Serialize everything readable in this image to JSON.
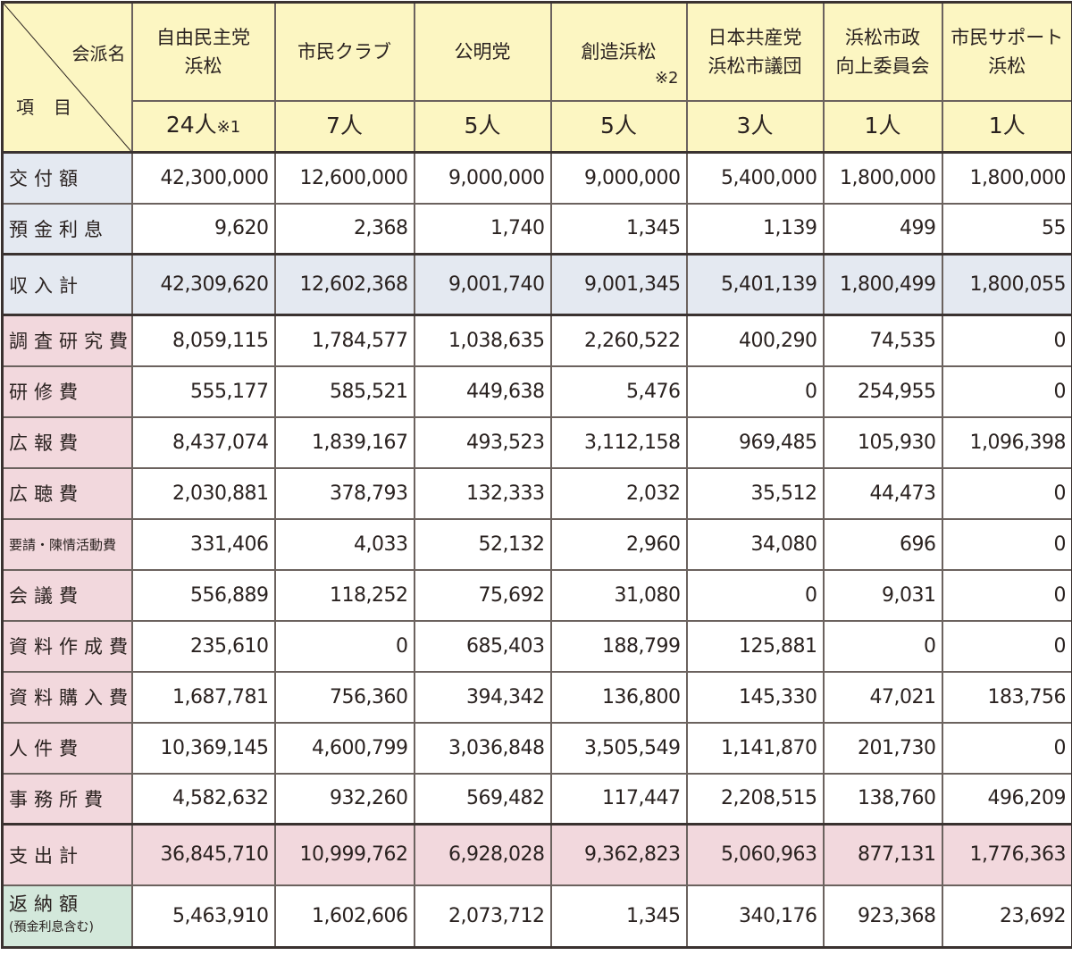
{
  "corner": {
    "column_label": "会派名",
    "row_label": "項目"
  },
  "factions": [
    {
      "name": "自由民主党\n浜松",
      "members": "24人",
      "note": "※1"
    },
    {
      "name": "市民クラブ",
      "members": "7人"
    },
    {
      "name": "公明党",
      "members": "5人"
    },
    {
      "name": "創造浜松",
      "name_note": "※2",
      "members": "5人"
    },
    {
      "name": "日本共産党\n浜松市議団",
      "members": "3人"
    },
    {
      "name": "浜松市政\n向上委員会",
      "members": "1人"
    },
    {
      "name": "市民サポート\n浜松",
      "members": "1人"
    }
  ],
  "rows": [
    {
      "label": "交付額",
      "style": "blue",
      "values": [
        "42,300,000",
        "12,600,000",
        "9,000,000",
        "9,000,000",
        "5,400,000",
        "1,800,000",
        "1,800,000"
      ]
    },
    {
      "label": "預金利息",
      "style": "blue",
      "values": [
        "9,620",
        "2,368",
        "1,740",
        "1,345",
        "1,139",
        "499",
        "55"
      ]
    },
    {
      "label": "収入計",
      "style": "blue-total",
      "values": [
        "42,309,620",
        "12,602,368",
        "9,001,740",
        "9,001,345",
        "5,401,139",
        "1,800,499",
        "1,800,055"
      ]
    },
    {
      "label": "調査研究費",
      "style": "pink",
      "values": [
        "8,059,115",
        "1,784,577",
        "1,038,635",
        "2,260,522",
        "400,290",
        "74,535",
        "0"
      ]
    },
    {
      "label": "研修費",
      "style": "pink",
      "values": [
        "555,177",
        "585,521",
        "449,638",
        "5,476",
        "0",
        "254,955",
        "0"
      ]
    },
    {
      "label": "広報費",
      "style": "pink",
      "values": [
        "8,437,074",
        "1,839,167",
        "493,523",
        "3,112,158",
        "969,485",
        "105,930",
        "1,096,398"
      ]
    },
    {
      "label": "広聴費",
      "style": "pink",
      "values": [
        "2,030,881",
        "378,793",
        "132,333",
        "2,032",
        "35,512",
        "44,473",
        "0"
      ]
    },
    {
      "label": "要請・陳情活動費",
      "style": "pink-small",
      "values": [
        "331,406",
        "4,033",
        "52,132",
        "2,960",
        "34,080",
        "696",
        "0"
      ]
    },
    {
      "label": "会議費",
      "style": "pink",
      "values": [
        "556,889",
        "118,252",
        "75,692",
        "31,080",
        "0",
        "9,031",
        "0"
      ]
    },
    {
      "label": "資料作成費",
      "style": "pink",
      "values": [
        "235,610",
        "0",
        "685,403",
        "188,799",
        "125,881",
        "0",
        "0"
      ]
    },
    {
      "label": "資料購入費",
      "style": "pink",
      "values": [
        "1,687,781",
        "756,360",
        "394,342",
        "136,800",
        "145,330",
        "47,021",
        "183,756"
      ]
    },
    {
      "label": "人件費",
      "style": "pink",
      "values": [
        "10,369,145",
        "4,600,799",
        "3,036,848",
        "3,505,549",
        "1,141,870",
        "201,730",
        "0"
      ]
    },
    {
      "label": "事務所費",
      "style": "pink",
      "values": [
        "4,582,632",
        "932,260",
        "569,482",
        "117,447",
        "2,208,515",
        "138,760",
        "496,209"
      ]
    },
    {
      "label": "支出計",
      "style": "pink-total",
      "values": [
        "36,845,710",
        "10,999,762",
        "6,928,028",
        "9,362,823",
        "5,060,963",
        "877,131",
        "1,776,363"
      ]
    },
    {
      "label": "返納額",
      "sublabel": "(預金利息含む)",
      "style": "green",
      "values": [
        "5,463,910",
        "1,602,606",
        "2,073,712",
        "1,345",
        "340,176",
        "923,368",
        "23,692"
      ]
    }
  ],
  "colors": {
    "header": "#fcf6c2",
    "income": "#e4e9f1",
    "expense": "#f2d8dd",
    "refund": "#d3e8db"
  }
}
